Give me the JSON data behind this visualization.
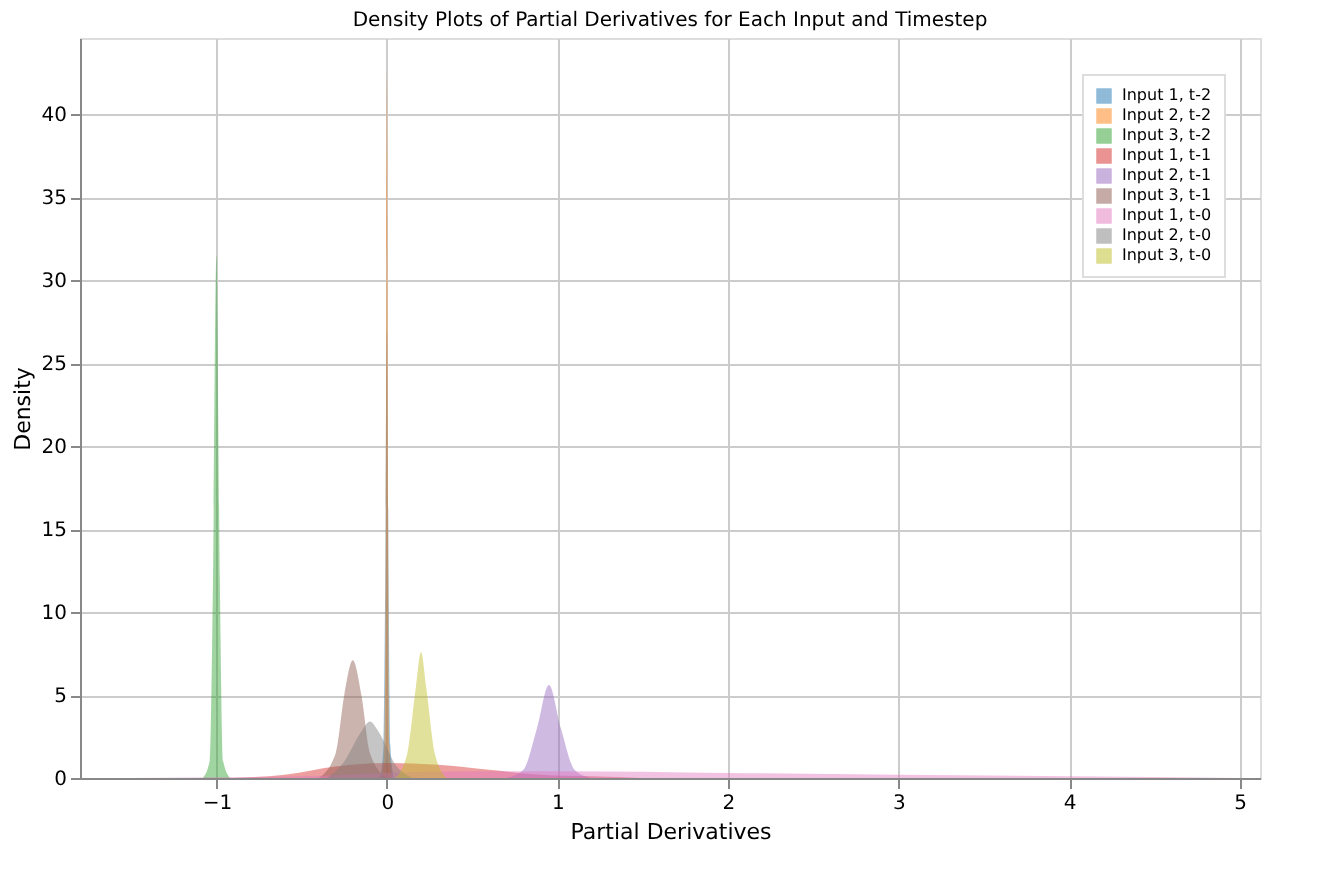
{
  "chart_data": {
    "type": "area",
    "title": "Density Plots of Partial Derivatives for Each Input and Timestep",
    "xlabel": "Partial Derivatives",
    "ylabel": "Density",
    "xlim": [
      -1.8,
      5.12
    ],
    "ylim": [
      0,
      44.6
    ],
    "xticks": [
      -1,
      0,
      1,
      2,
      3,
      4,
      5
    ],
    "yticks": [
      0,
      5,
      10,
      15,
      20,
      25,
      30,
      35,
      40
    ],
    "grid": true,
    "legend": "top right",
    "series": [
      {
        "name": "Input 1, t-2",
        "color": "#1f77b4",
        "x": [
          -0.04,
          -0.02,
          -0.01,
          0,
          0.01,
          0.02,
          0.04
        ],
        "values": [
          0,
          2,
          12,
          27,
          12,
          2,
          0
        ]
      },
      {
        "name": "Input 2, t-2",
        "color": "#ff7f0e",
        "x": [
          -0.03,
          -0.015,
          -0.007,
          0,
          0.007,
          0.015,
          0.03
        ],
        "values": [
          0,
          2,
          15,
          42.5,
          15,
          2,
          0
        ]
      },
      {
        "name": "Input 3, t-2",
        "color": "#2ca02c",
        "x": [
          -1.08,
          -1.04,
          -1.02,
          -1.0,
          -0.98,
          -0.96,
          -0.92
        ],
        "values": [
          0,
          1,
          12,
          31.5,
          12,
          1,
          0
        ]
      },
      {
        "name": "Input 1, t-1",
        "color": "#d62728",
        "x": [
          -0.9,
          -0.6,
          -0.3,
          0,
          0.3,
          0.6,
          0.9,
          1.2,
          1.5
        ],
        "values": [
          0,
          0.2,
          0.7,
          0.9,
          0.8,
          0.5,
          0.2,
          0.1,
          0
        ]
      },
      {
        "name": "Input 2, t-1",
        "color": "#9467bd",
        "x": [
          0.7,
          0.8,
          0.88,
          0.95,
          1.02,
          1.1,
          1.2
        ],
        "values": [
          0,
          0.5,
          3,
          5.6,
          3,
          0.5,
          0
        ]
      },
      {
        "name": "Input 3, t-1",
        "color": "#8c564b",
        "x": [
          -0.4,
          -0.3,
          -0.25,
          -0.2,
          -0.15,
          -0.1,
          0
        ],
        "values": [
          0,
          1.5,
          5,
          7.1,
          5,
          1.5,
          0
        ]
      },
      {
        "name": "Input 1, t-0",
        "color": "#e377c2",
        "x": [
          -1.5,
          -0.5,
          0,
          0.5,
          1,
          2,
          3,
          4,
          5
        ],
        "values": [
          0,
          0.1,
          0.3,
          0.4,
          0.4,
          0.3,
          0.2,
          0.1,
          0
        ]
      },
      {
        "name": "Input 2, t-0",
        "color": "#7f7f7f",
        "x": [
          -0.35,
          -0.25,
          -0.15,
          -0.1,
          -0.05,
          0.05,
          0.15
        ],
        "values": [
          0,
          1,
          2.8,
          3.4,
          2.8,
          0.8,
          0
        ]
      },
      {
        "name": "Input 3, t-0",
        "color": "#bcbd22",
        "x": [
          0.05,
          0.12,
          0.17,
          0.2,
          0.23,
          0.28,
          0.35
        ],
        "values": [
          0,
          1.5,
          5.5,
          7.6,
          5.5,
          1.5,
          0
        ]
      }
    ]
  }
}
